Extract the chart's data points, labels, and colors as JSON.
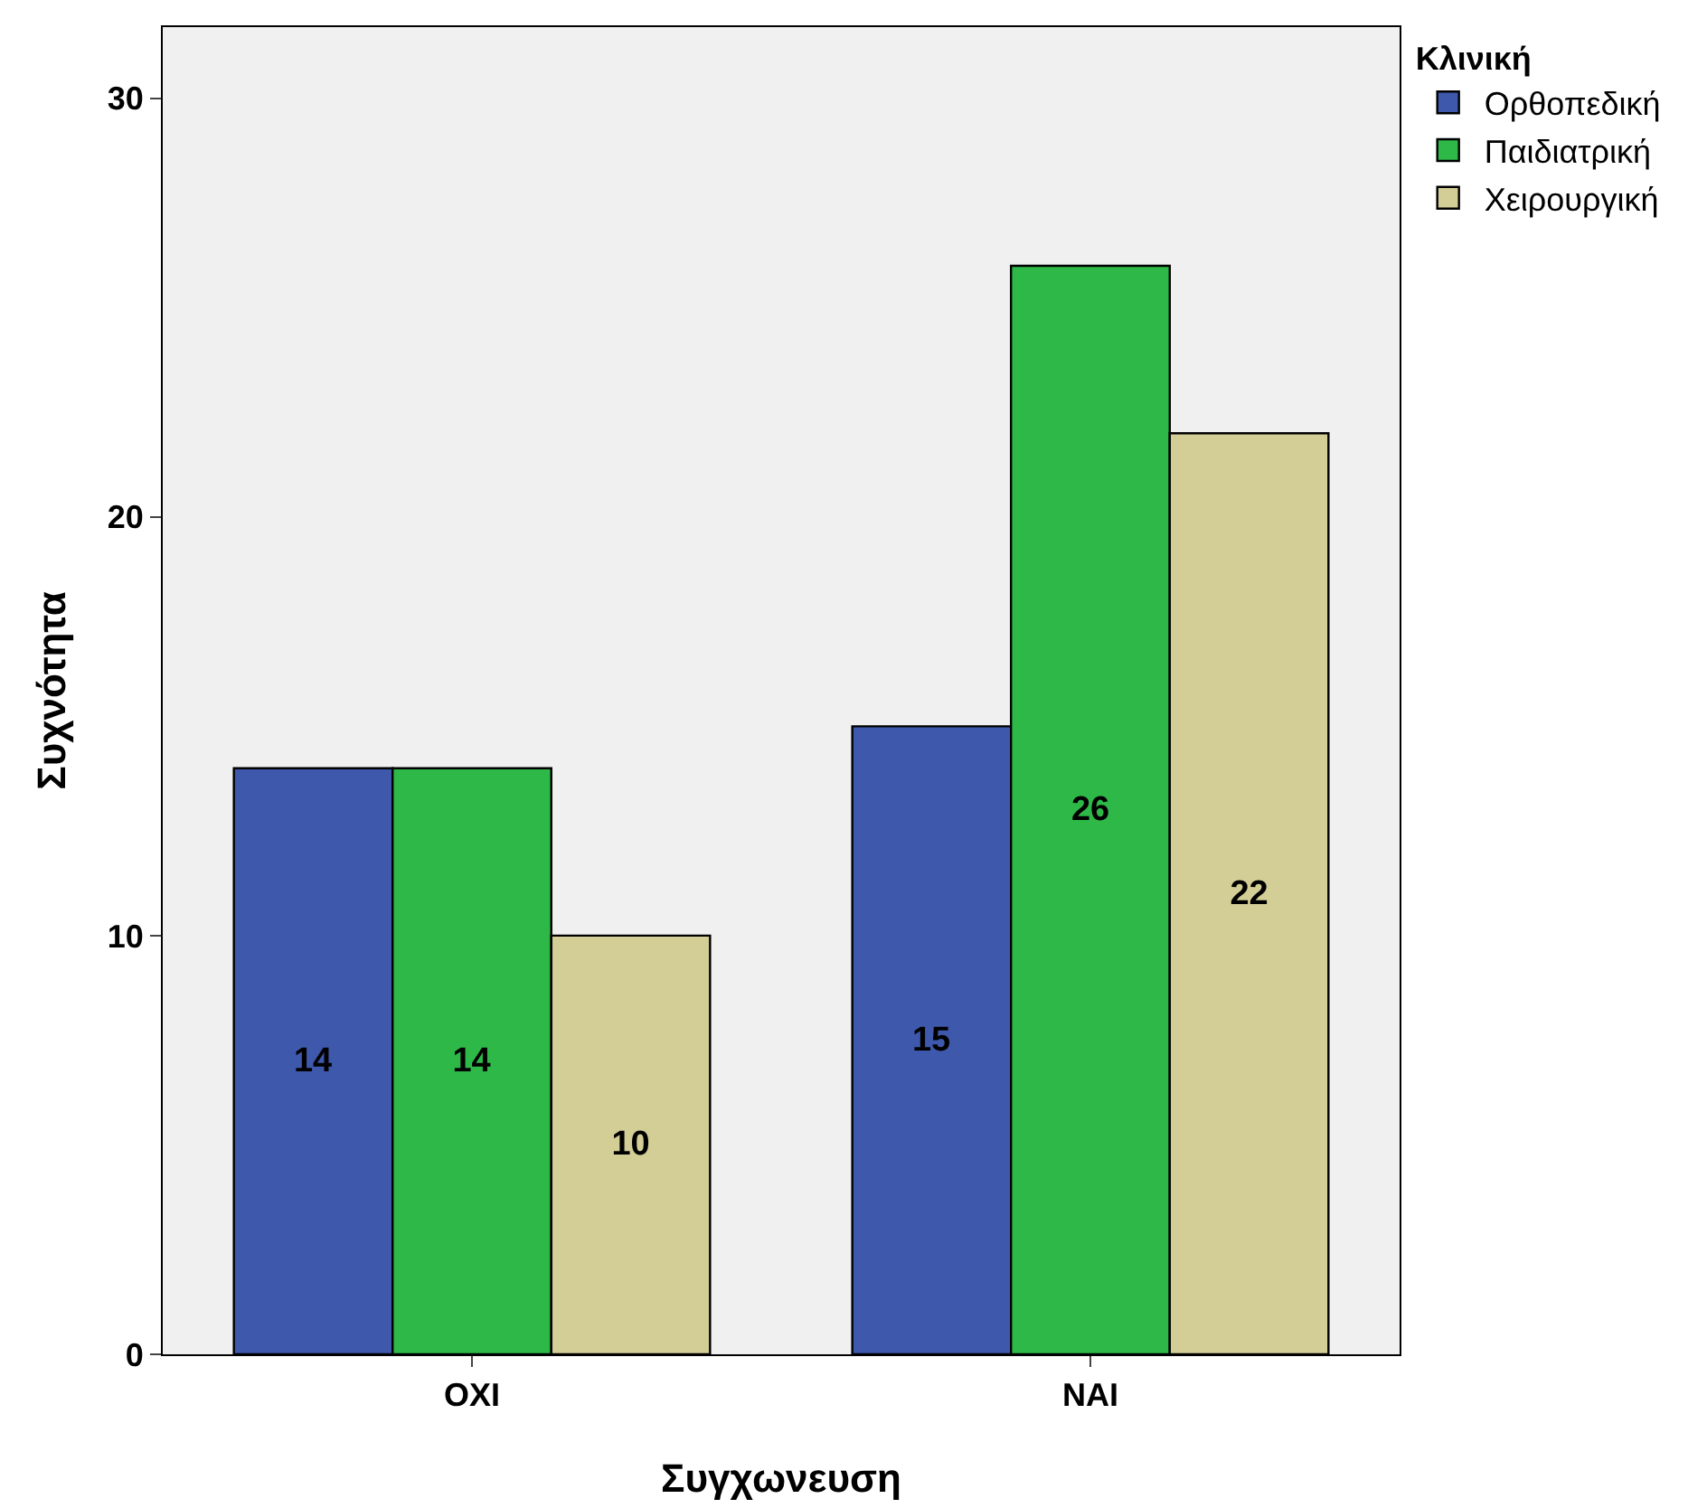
{
  "chart_data": {
    "type": "bar",
    "xlabel": "Συγχωνευση",
    "ylabel": "Συχνότητα",
    "legend_title": "Κλινική",
    "categories": [
      "ΟΧΙ",
      "ΝΑΙ"
    ],
    "series": [
      {
        "name": "Ορθοπεδική",
        "color": "#3e58ac",
        "values": [
          14,
          15
        ]
      },
      {
        "name": "Παιδιατρική",
        "color": "#2eb848",
        "values": [
          14,
          26
        ]
      },
      {
        "name": "Χειρουργική",
        "color": "#d3ce96",
        "values": [
          10,
          22
        ]
      }
    ],
    "ylim": [
      0,
      31.7
    ],
    "yticks": [
      0,
      10,
      20,
      30
    ],
    "grid": false,
    "legend": "top right",
    "data_labels": true
  }
}
